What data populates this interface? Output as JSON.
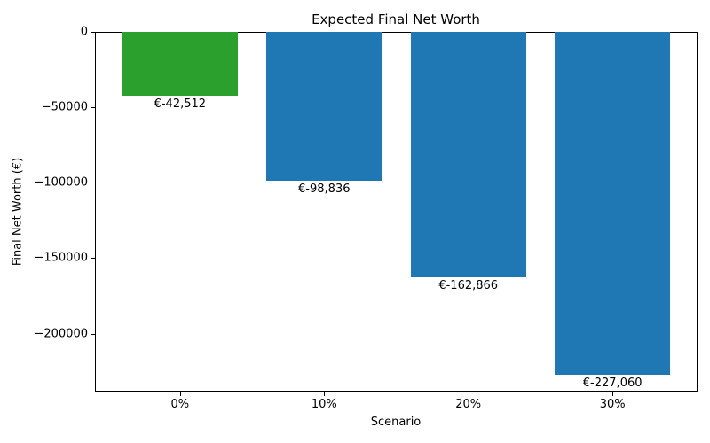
{
  "chart_data": {
    "type": "bar",
    "title": "Expected Final Net Worth",
    "xlabel": "Scenario",
    "ylabel": "Final Net Worth (€)",
    "categories": [
      "0%",
      "10%",
      "20%",
      "30%"
    ],
    "values": [
      -42512,
      -98836,
      -162866,
      -227060
    ],
    "value_labels": [
      "€-42,512",
      "€-98,836",
      "€-162,866",
      "€-227,060"
    ],
    "bar_colors": [
      "#2ca02c",
      "#1f77b4",
      "#1f77b4",
      "#1f77b4"
    ],
    "yticks": [
      {
        "value": 0,
        "label": "0"
      },
      {
        "value": -50000,
        "label": "−50000"
      },
      {
        "value": -100000,
        "label": "−100000"
      },
      {
        "value": -150000,
        "label": "−150000"
      },
      {
        "value": -200000,
        "label": "−200000"
      }
    ],
    "ylim": [
      -238413,
      0
    ],
    "grid": false,
    "legend": null,
    "background": "#ffffff",
    "spine_color": "#000000"
  }
}
